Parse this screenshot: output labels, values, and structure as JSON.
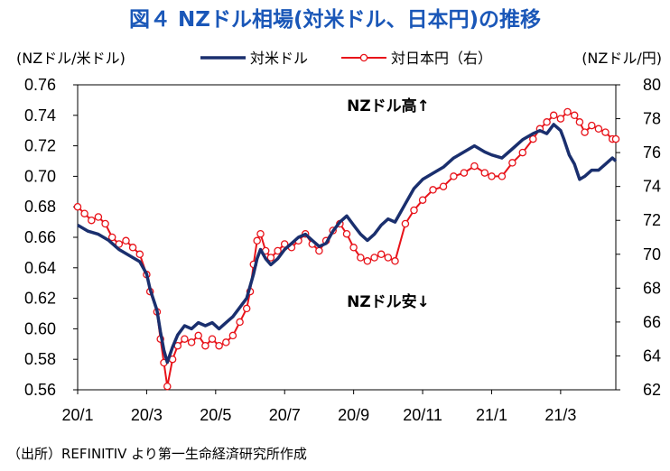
{
  "chart_data": {
    "type": "line",
    "title": "図４ NZドル相場(対米ドル、日本円)の推移",
    "left_axis_label": "(NZドル/米ドル)",
    "right_axis_label": "(NZドル/円)",
    "x_tick_labels": [
      "20/1",
      "20/3",
      "20/5",
      "20/7",
      "20/9",
      "20/11",
      "21/1",
      "21/3"
    ],
    "left_axis": {
      "min": 0.56,
      "max": 0.76,
      "step": 0.02,
      "tick_labels": [
        "0.56",
        "0.58",
        "0.60",
        "0.62",
        "0.64",
        "0.66",
        "0.68",
        "0.70",
        "0.72",
        "0.74",
        "0.76"
      ]
    },
    "right_axis": {
      "min": 62,
      "max": 80,
      "step": 2,
      "tick_labels": [
        "62",
        "64",
        "66",
        "68",
        "70",
        "72",
        "74",
        "76",
        "78",
        "80"
      ]
    },
    "x_range_months": [
      0,
      15.6
    ],
    "series": [
      {
        "name": "対米ドル",
        "axis": "left",
        "color": "#1a2f6e",
        "points": [
          [
            0.0,
            0.668
          ],
          [
            0.3,
            0.664
          ],
          [
            0.6,
            0.662
          ],
          [
            0.9,
            0.658
          ],
          [
            1.2,
            0.652
          ],
          [
            1.5,
            0.648
          ],
          [
            1.8,
            0.644
          ],
          [
            2.0,
            0.636
          ],
          [
            2.1,
            0.626
          ],
          [
            2.3,
            0.612
          ],
          [
            2.4,
            0.598
          ],
          [
            2.5,
            0.586
          ],
          [
            2.6,
            0.578
          ],
          [
            2.75,
            0.588
          ],
          [
            2.9,
            0.596
          ],
          [
            3.1,
            0.602
          ],
          [
            3.3,
            0.6
          ],
          [
            3.5,
            0.604
          ],
          [
            3.7,
            0.602
          ],
          [
            3.9,
            0.604
          ],
          [
            4.1,
            0.6
          ],
          [
            4.3,
            0.604
          ],
          [
            4.5,
            0.608
          ],
          [
            4.7,
            0.614
          ],
          [
            4.9,
            0.62
          ],
          [
            5.0,
            0.628
          ],
          [
            5.1,
            0.636
          ],
          [
            5.2,
            0.646
          ],
          [
            5.3,
            0.652
          ],
          [
            5.45,
            0.646
          ],
          [
            5.6,
            0.642
          ],
          [
            5.8,
            0.646
          ],
          [
            6.0,
            0.652
          ],
          [
            6.2,
            0.656
          ],
          [
            6.4,
            0.66
          ],
          [
            6.6,
            0.662
          ],
          [
            6.8,
            0.658
          ],
          [
            7.0,
            0.654
          ],
          [
            7.2,
            0.656
          ],
          [
            7.4,
            0.664
          ],
          [
            7.6,
            0.67
          ],
          [
            7.8,
            0.674
          ],
          [
            8.0,
            0.668
          ],
          [
            8.2,
            0.662
          ],
          [
            8.4,
            0.658
          ],
          [
            8.6,
            0.662
          ],
          [
            8.8,
            0.668
          ],
          [
            9.0,
            0.672
          ],
          [
            9.2,
            0.67
          ],
          [
            9.5,
            0.682
          ],
          [
            9.75,
            0.692
          ],
          [
            10.0,
            0.698
          ],
          [
            10.3,
            0.702
          ],
          [
            10.6,
            0.706
          ],
          [
            10.9,
            0.712
          ],
          [
            11.2,
            0.716
          ],
          [
            11.5,
            0.72
          ],
          [
            11.8,
            0.716
          ],
          [
            12.0,
            0.714
          ],
          [
            12.3,
            0.712
          ],
          [
            12.6,
            0.718
          ],
          [
            12.9,
            0.724
          ],
          [
            13.2,
            0.728
          ],
          [
            13.4,
            0.73
          ],
          [
            13.6,
            0.728
          ],
          [
            13.8,
            0.734
          ],
          [
            14.0,
            0.73
          ],
          [
            14.1,
            0.724
          ],
          [
            14.25,
            0.714
          ],
          [
            14.4,
            0.708
          ],
          [
            14.55,
            0.698
          ],
          [
            14.7,
            0.7
          ],
          [
            14.9,
            0.704
          ],
          [
            15.1,
            0.704
          ],
          [
            15.3,
            0.708
          ],
          [
            15.5,
            0.712
          ],
          [
            15.6,
            0.71
          ]
        ]
      },
      {
        "name": "対日本円（右）",
        "axis": "right",
        "color": "#e8131a",
        "points": [
          [
            0.0,
            72.8
          ],
          [
            0.2,
            72.4
          ],
          [
            0.4,
            72.0
          ],
          [
            0.6,
            72.2
          ],
          [
            0.8,
            71.8
          ],
          [
            1.0,
            71.0
          ],
          [
            1.2,
            70.6
          ],
          [
            1.4,
            70.8
          ],
          [
            1.6,
            70.4
          ],
          [
            1.8,
            70.0
          ],
          [
            2.0,
            68.8
          ],
          [
            2.1,
            67.8
          ],
          [
            2.3,
            66.6
          ],
          [
            2.4,
            65.0
          ],
          [
            2.5,
            63.6
          ],
          [
            2.6,
            62.2
          ],
          [
            2.75,
            63.8
          ],
          [
            2.9,
            64.6
          ],
          [
            3.1,
            65.0
          ],
          [
            3.3,
            64.8
          ],
          [
            3.5,
            65.2
          ],
          [
            3.7,
            64.6
          ],
          [
            3.9,
            65.0
          ],
          [
            4.1,
            64.6
          ],
          [
            4.3,
            64.8
          ],
          [
            4.5,
            65.2
          ],
          [
            4.7,
            66.0
          ],
          [
            4.9,
            66.8
          ],
          [
            5.0,
            67.8
          ],
          [
            5.1,
            69.4
          ],
          [
            5.2,
            70.8
          ],
          [
            5.3,
            71.2
          ],
          [
            5.45,
            70.2
          ],
          [
            5.6,
            69.8
          ],
          [
            5.8,
            70.2
          ],
          [
            6.0,
            70.6
          ],
          [
            6.2,
            70.4
          ],
          [
            6.4,
            70.8
          ],
          [
            6.6,
            71.2
          ],
          [
            6.8,
            70.6
          ],
          [
            7.0,
            70.2
          ],
          [
            7.2,
            70.8
          ],
          [
            7.4,
            71.4
          ],
          [
            7.6,
            71.8
          ],
          [
            7.8,
            71.2
          ],
          [
            8.0,
            70.4
          ],
          [
            8.2,
            69.8
          ],
          [
            8.4,
            69.6
          ],
          [
            8.6,
            69.8
          ],
          [
            8.8,
            70.0
          ],
          [
            9.0,
            69.8
          ],
          [
            9.2,
            69.6
          ],
          [
            9.5,
            71.8
          ],
          [
            9.75,
            72.6
          ],
          [
            10.0,
            73.2
          ],
          [
            10.3,
            73.8
          ],
          [
            10.6,
            74.0
          ],
          [
            10.9,
            74.6
          ],
          [
            11.2,
            74.8
          ],
          [
            11.5,
            75.2
          ],
          [
            11.8,
            74.8
          ],
          [
            12.0,
            74.6
          ],
          [
            12.3,
            74.6
          ],
          [
            12.6,
            75.4
          ],
          [
            12.9,
            76.0
          ],
          [
            13.2,
            76.8
          ],
          [
            13.4,
            77.4
          ],
          [
            13.6,
            77.8
          ],
          [
            13.8,
            78.2
          ],
          [
            14.0,
            78.0
          ],
          [
            14.2,
            78.4
          ],
          [
            14.4,
            78.2
          ],
          [
            14.55,
            77.8
          ],
          [
            14.7,
            77.2
          ],
          [
            14.9,
            77.6
          ],
          [
            15.1,
            77.4
          ],
          [
            15.3,
            77.2
          ],
          [
            15.5,
            76.8
          ],
          [
            15.6,
            76.8
          ]
        ]
      }
    ],
    "annotations": {
      "up": "NZドル高↑",
      "down": "NZドル安↓"
    }
  },
  "source": "（出所）REFINITIV より第一生命経済研究所作成"
}
